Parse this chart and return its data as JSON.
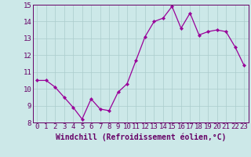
{
  "x": [
    0,
    1,
    2,
    3,
    4,
    5,
    6,
    7,
    8,
    9,
    10,
    11,
    12,
    13,
    14,
    15,
    16,
    17,
    18,
    19,
    20,
    21,
    22,
    23
  ],
  "y": [
    10.5,
    10.5,
    10.1,
    9.5,
    8.9,
    8.2,
    9.4,
    8.8,
    8.7,
    9.8,
    10.3,
    11.7,
    13.1,
    14.0,
    14.2,
    14.9,
    13.6,
    14.5,
    13.2,
    13.4,
    13.5,
    13.4,
    12.5,
    11.4
  ],
  "line_color": "#990099",
  "marker": "D",
  "marker_size": 2.2,
  "bg_color": "#cce8e8",
  "grid_color": "#aacccc",
  "xlabel": "Windchill (Refroidissement éolien,°C)",
  "ylim": [
    8,
    15
  ],
  "xlim_min": -0.5,
  "xlim_max": 23.5,
  "yticks": [
    8,
    9,
    10,
    11,
    12,
    13,
    14,
    15
  ],
  "xticks": [
    0,
    1,
    2,
    3,
    4,
    5,
    6,
    7,
    8,
    9,
    10,
    11,
    12,
    13,
    14,
    15,
    16,
    17,
    18,
    19,
    20,
    21,
    22,
    23
  ],
  "tick_label_fontsize": 6.5,
  "xlabel_fontsize": 7.0,
  "axis_color": "#660066",
  "spine_color": "#660066",
  "line_width": 0.9
}
